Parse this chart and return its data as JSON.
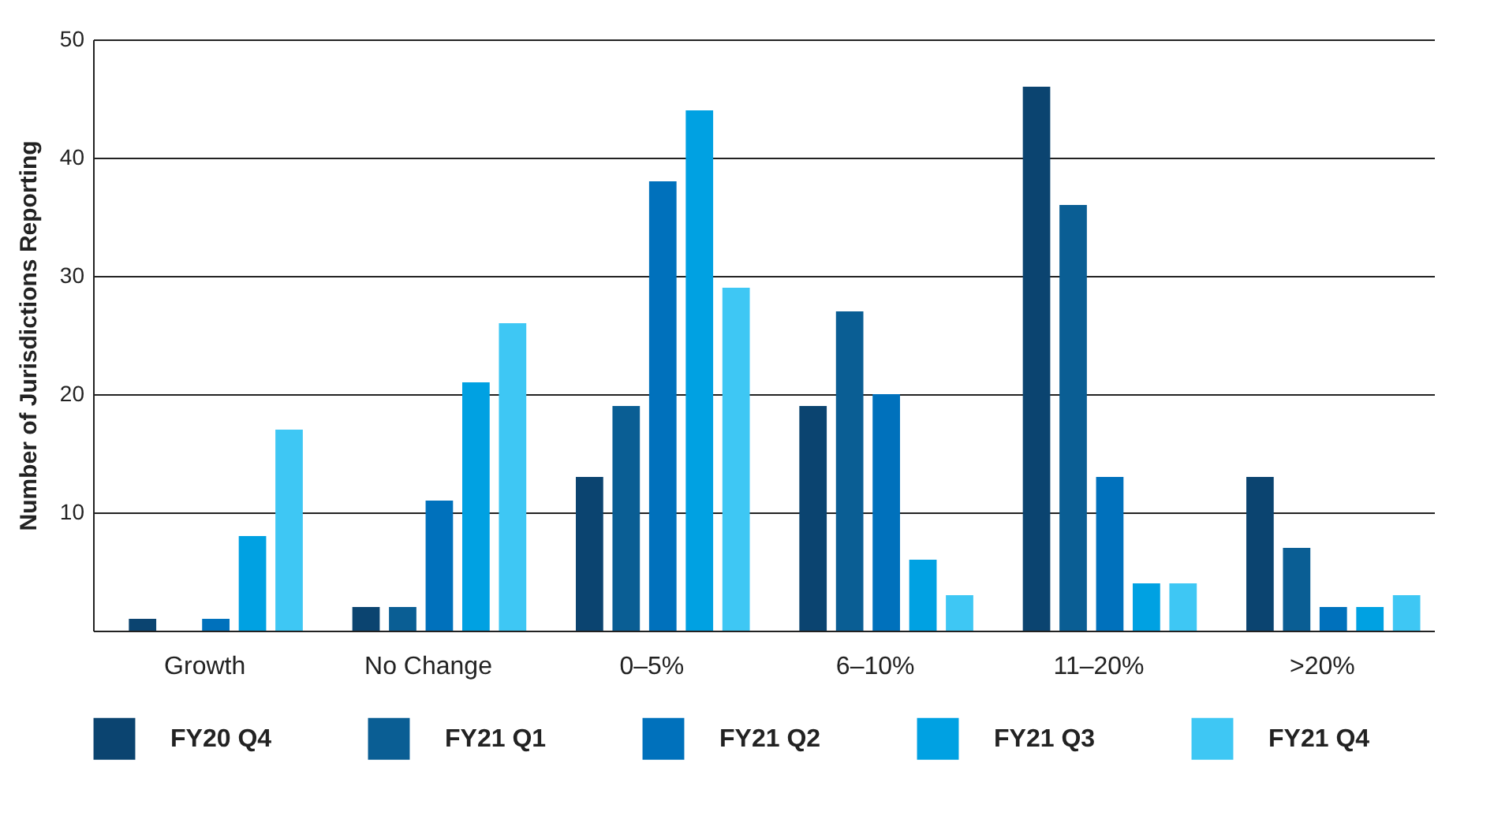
{
  "chart_data": {
    "type": "bar",
    "ylabel": "Number of Jurisdictions Reporting",
    "categories": [
      "Growth",
      "No Change",
      "0–5%",
      "6–10%",
      "11–20%",
      ">20%"
    ],
    "series": [
      {
        "name": "FY20 Q4",
        "color": "#0b4470",
        "values": [
          1,
          2,
          13,
          19,
          46,
          13
        ]
      },
      {
        "name": "FY21 Q1",
        "color": "#0a5e94",
        "values": [
          0,
          2,
          19,
          27,
          36,
          7
        ]
      },
      {
        "name": "FY21 Q2",
        "color": "#0071bc",
        "values": [
          1,
          11,
          38,
          20,
          13,
          2
        ]
      },
      {
        "name": "FY21 Q3",
        "color": "#00a1e2",
        "values": [
          8,
          21,
          44,
          6,
          4,
          2
        ]
      },
      {
        "name": "FY21 Q4",
        "color": "#3ec7f4",
        "values": [
          17,
          26,
          29,
          3,
          4,
          3
        ]
      }
    ],
    "ylim": [
      0,
      50
    ],
    "yticks": [
      10,
      20,
      30,
      40,
      50
    ],
    "grid": "y",
    "legend": "bottom"
  }
}
